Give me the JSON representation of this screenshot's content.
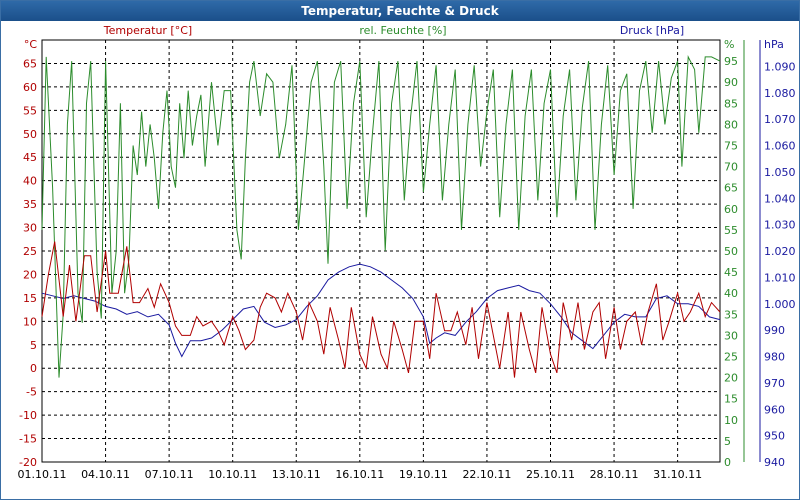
{
  "chart_data": {
    "type": "line",
    "title": "Temperatur, Feuchte & Druck",
    "x_dates": [
      "01.10.11",
      "04.10.11",
      "07.10.11",
      "10.10.11",
      "13.10.11",
      "16.10.11",
      "19.10.11",
      "22.10.11",
      "25.10.11",
      "28.10.11",
      "31.10.11"
    ],
    "x_range_days": [
      0,
      32
    ],
    "axes": {
      "temp": {
        "unit": "°C",
        "ylim": [
          -20,
          70
        ],
        "ticks": [
          -20,
          -15,
          -10,
          -5,
          0,
          5,
          10,
          15,
          20,
          25,
          30,
          35,
          40,
          45,
          50,
          55,
          60,
          65
        ],
        "color": "#b00000"
      },
      "hum": {
        "unit": "%",
        "ylim": [
          0,
          100
        ],
        "ticks": [
          0,
          5,
          10,
          15,
          20,
          25,
          30,
          35,
          40,
          45,
          50,
          55,
          60,
          65,
          70,
          75,
          80,
          85,
          90,
          95
        ],
        "color": "#2c8c2c"
      },
      "press": {
        "unit": "hPa",
        "ylim": [
          940,
          1100
        ],
        "ticks": [
          940,
          950,
          960,
          970,
          980,
          990,
          1000,
          1010,
          1020,
          1030,
          1040,
          1050,
          1060,
          1070,
          1080,
          1090
        ],
        "tick_labels": [
          "940",
          "950",
          "960",
          "970",
          "980",
          "990",
          "1.000",
          "1.010",
          "1.020",
          "1.030",
          "1.040",
          "1.050",
          "1.060",
          "1.070",
          "1.080",
          "1.090"
        ],
        "color": "#1a1aa0"
      }
    },
    "series": [
      {
        "name": "Temperatur [°C]",
        "axis": "temp",
        "color": "#b00000",
        "values": [
          [
            0,
            11
          ],
          [
            0.3,
            20
          ],
          [
            0.6,
            27
          ],
          [
            1,
            11
          ],
          [
            1.3,
            22
          ],
          [
            1.6,
            10
          ],
          [
            2,
            24
          ],
          [
            2.3,
            24
          ],
          [
            2.6,
            12
          ],
          [
            3,
            25
          ],
          [
            3.2,
            16
          ],
          [
            3.6,
            16
          ],
          [
            4,
            26
          ],
          [
            4.3,
            14
          ],
          [
            4.6,
            14
          ],
          [
            5,
            17
          ],
          [
            5.3,
            13
          ],
          [
            5.6,
            18
          ],
          [
            6,
            14
          ],
          [
            6.3,
            9
          ],
          [
            6.6,
            7
          ],
          [
            7,
            7
          ],
          [
            7.3,
            11
          ],
          [
            7.6,
            9
          ],
          [
            8,
            10
          ],
          [
            8.3,
            8
          ],
          [
            8.6,
            5
          ],
          [
            9,
            11
          ],
          [
            9.3,
            8
          ],
          [
            9.6,
            4
          ],
          [
            10,
            6
          ],
          [
            10.3,
            13
          ],
          [
            10.6,
            16
          ],
          [
            11,
            15
          ],
          [
            11.3,
            12
          ],
          [
            11.6,
            16
          ],
          [
            12,
            12
          ],
          [
            12.3,
            6
          ],
          [
            12.6,
            14
          ],
          [
            13,
            10
          ],
          [
            13.3,
            3
          ],
          [
            13.6,
            13
          ],
          [
            14,
            6
          ],
          [
            14.3,
            0
          ],
          [
            14.6,
            13
          ],
          [
            15,
            3
          ],
          [
            15.3,
            0
          ],
          [
            15.6,
            11
          ],
          [
            16,
            3
          ],
          [
            16.3,
            0
          ],
          [
            16.6,
            10
          ],
          [
            17,
            4
          ],
          [
            17.3,
            -1
          ],
          [
            17.6,
            10
          ],
          [
            18,
            10
          ],
          [
            18.3,
            2
          ],
          [
            18.6,
            16
          ],
          [
            19,
            8
          ],
          [
            19.3,
            8
          ],
          [
            19.6,
            12
          ],
          [
            20,
            5
          ],
          [
            20.3,
            13
          ],
          [
            20.6,
            2
          ],
          [
            21,
            14
          ],
          [
            21.3,
            7
          ],
          [
            21.6,
            0
          ],
          [
            22,
            12
          ],
          [
            22.3,
            -2
          ],
          [
            22.6,
            12
          ],
          [
            23,
            4
          ],
          [
            23.3,
            -1
          ],
          [
            23.6,
            13
          ],
          [
            24,
            3
          ],
          [
            24.3,
            -1
          ],
          [
            24.6,
            14
          ],
          [
            25,
            6
          ],
          [
            25.3,
            14
          ],
          [
            25.6,
            4
          ],
          [
            26,
            12
          ],
          [
            26.3,
            14
          ],
          [
            26.6,
            2
          ],
          [
            27,
            13
          ],
          [
            27.3,
            4
          ],
          [
            27.6,
            10
          ],
          [
            28,
            12
          ],
          [
            28.3,
            5
          ],
          [
            28.6,
            12
          ],
          [
            29,
            18
          ],
          [
            29.3,
            6
          ],
          [
            29.6,
            10
          ],
          [
            30,
            16
          ],
          [
            30.3,
            10
          ],
          [
            30.6,
            12
          ],
          [
            31,
            16
          ],
          [
            31.3,
            11
          ],
          [
            31.6,
            14
          ],
          [
            32,
            12
          ]
        ]
      },
      {
        "name": "rel. Feuchte [%]",
        "axis": "hum",
        "color": "#2c8c2c",
        "values": [
          [
            0,
            55
          ],
          [
            0.2,
            96
          ],
          [
            0.5,
            65
          ],
          [
            0.8,
            20
          ],
          [
            1,
            35
          ],
          [
            1.2,
            80
          ],
          [
            1.4,
            95
          ],
          [
            1.7,
            40
          ],
          [
            1.9,
            33
          ],
          [
            2.1,
            85
          ],
          [
            2.3,
            95
          ],
          [
            2.6,
            45
          ],
          [
            2.8,
            34
          ],
          [
            3,
            95
          ],
          [
            3.3,
            40
          ],
          [
            3.5,
            50
          ],
          [
            3.7,
            85
          ],
          [
            3.9,
            40
          ],
          [
            4.1,
            48
          ],
          [
            4.3,
            75
          ],
          [
            4.5,
            68
          ],
          [
            4.7,
            83
          ],
          [
            4.9,
            70
          ],
          [
            5.1,
            80
          ],
          [
            5.3,
            72
          ],
          [
            5.5,
            60
          ],
          [
            5.7,
            78
          ],
          [
            5.9,
            88
          ],
          [
            6.1,
            70
          ],
          [
            6.3,
            65
          ],
          [
            6.5,
            85
          ],
          [
            6.7,
            72
          ],
          [
            6.9,
            88
          ],
          [
            7.1,
            75
          ],
          [
            7.3,
            82
          ],
          [
            7.5,
            87
          ],
          [
            7.7,
            70
          ],
          [
            8,
            90
          ],
          [
            8.3,
            75
          ],
          [
            8.6,
            88
          ],
          [
            8.9,
            88
          ],
          [
            9.2,
            55
          ],
          [
            9.4,
            48
          ],
          [
            9.6,
            72
          ],
          [
            9.8,
            90
          ],
          [
            10,
            95
          ],
          [
            10.3,
            82
          ],
          [
            10.6,
            92
          ],
          [
            10.9,
            90
          ],
          [
            11.2,
            72
          ],
          [
            11.5,
            80
          ],
          [
            11.8,
            94
          ],
          [
            12.1,
            55
          ],
          [
            12.4,
            72
          ],
          [
            12.7,
            90
          ],
          [
            13,
            95
          ],
          [
            13.3,
            70
          ],
          [
            13.5,
            47
          ],
          [
            13.8,
            90
          ],
          [
            14.1,
            95
          ],
          [
            14.4,
            60
          ],
          [
            14.7,
            85
          ],
          [
            15,
            95
          ],
          [
            15.3,
            58
          ],
          [
            15.6,
            78
          ],
          [
            15.9,
            95
          ],
          [
            16.2,
            50
          ],
          [
            16.5,
            85
          ],
          [
            16.8,
            95
          ],
          [
            17.1,
            62
          ],
          [
            17.4,
            82
          ],
          [
            17.7,
            95
          ],
          [
            18,
            64
          ],
          [
            18.3,
            80
          ],
          [
            18.6,
            94
          ],
          [
            18.9,
            62
          ],
          [
            19.2,
            80
          ],
          [
            19.5,
            93
          ],
          [
            19.8,
            55
          ],
          [
            20.1,
            80
          ],
          [
            20.4,
            94
          ],
          [
            20.7,
            70
          ],
          [
            21,
            83
          ],
          [
            21.3,
            93
          ],
          [
            21.6,
            58
          ],
          [
            21.9,
            80
          ],
          [
            22.2,
            93
          ],
          [
            22.5,
            55
          ],
          [
            22.8,
            82
          ],
          [
            23.1,
            93
          ],
          [
            23.4,
            62
          ],
          [
            23.7,
            85
          ],
          [
            24,
            93
          ],
          [
            24.3,
            58
          ],
          [
            24.6,
            82
          ],
          [
            24.9,
            93
          ],
          [
            25.2,
            62
          ],
          [
            25.5,
            84
          ],
          [
            25.8,
            95
          ],
          [
            26.1,
            55
          ],
          [
            26.4,
            80
          ],
          [
            26.7,
            94
          ],
          [
            27,
            68
          ],
          [
            27.3,
            88
          ],
          [
            27.6,
            92
          ],
          [
            27.9,
            60
          ],
          [
            28.2,
            88
          ],
          [
            28.5,
            95
          ],
          [
            28.8,
            78
          ],
          [
            29.1,
            95
          ],
          [
            29.4,
            80
          ],
          [
            29.7,
            91
          ],
          [
            30,
            95
          ],
          [
            30.2,
            70
          ],
          [
            30.5,
            96
          ],
          [
            30.8,
            93
          ],
          [
            31,
            78
          ],
          [
            31.3,
            96
          ],
          [
            31.6,
            96
          ],
          [
            32,
            95
          ]
        ]
      },
      {
        "name": "Druck [hPa]",
        "axis": "press",
        "color": "#1a1aa0",
        "values": [
          [
            0,
            1004
          ],
          [
            0.5,
            1003
          ],
          [
            1,
            1002
          ],
          [
            1.5,
            1003
          ],
          [
            2,
            1002
          ],
          [
            2.5,
            1001
          ],
          [
            3,
            999
          ],
          [
            3.5,
            998
          ],
          [
            4,
            996
          ],
          [
            4.5,
            997
          ],
          [
            5,
            995
          ],
          [
            5.5,
            996
          ],
          [
            6,
            992
          ],
          [
            6.3,
            985
          ],
          [
            6.6,
            980
          ],
          [
            7,
            986
          ],
          [
            7.5,
            986
          ],
          [
            8,
            987
          ],
          [
            8.5,
            990
          ],
          [
            9,
            994
          ],
          [
            9.5,
            998
          ],
          [
            10,
            999
          ],
          [
            10.5,
            993
          ],
          [
            11,
            991
          ],
          [
            11.5,
            992
          ],
          [
            12,
            994
          ],
          [
            12.5,
            999
          ],
          [
            13,
            1003
          ],
          [
            13.5,
            1009
          ],
          [
            14,
            1012
          ],
          [
            14.5,
            1014
          ],
          [
            15,
            1015
          ],
          [
            15.5,
            1014
          ],
          [
            16,
            1012
          ],
          [
            16.5,
            1009
          ],
          [
            17,
            1006
          ],
          [
            17.5,
            1002
          ],
          [
            18,
            995
          ],
          [
            18.3,
            985
          ],
          [
            18.6,
            987
          ],
          [
            19,
            989
          ],
          [
            19.5,
            988
          ],
          [
            20,
            993
          ],
          [
            20.5,
            997
          ],
          [
            21,
            1002
          ],
          [
            21.5,
            1005
          ],
          [
            22,
            1006
          ],
          [
            22.5,
            1007
          ],
          [
            23,
            1005
          ],
          [
            23.5,
            1004
          ],
          [
            24,
            1000
          ],
          [
            24.5,
            995
          ],
          [
            25,
            989
          ],
          [
            25.5,
            986
          ],
          [
            26,
            983
          ],
          [
            26.5,
            988
          ],
          [
            27,
            993
          ],
          [
            27.5,
            996
          ],
          [
            28,
            995
          ],
          [
            28.5,
            995
          ],
          [
            29,
            1002
          ],
          [
            29.5,
            1003
          ],
          [
            30,
            1000
          ],
          [
            30.5,
            1000
          ],
          [
            31,
            999
          ],
          [
            31.5,
            995
          ],
          [
            32,
            994
          ]
        ]
      }
    ],
    "legend": [
      "Temperatur [°C]",
      "rel. Feuchte [%]",
      "Druck [hPa]"
    ],
    "grid": true
  }
}
